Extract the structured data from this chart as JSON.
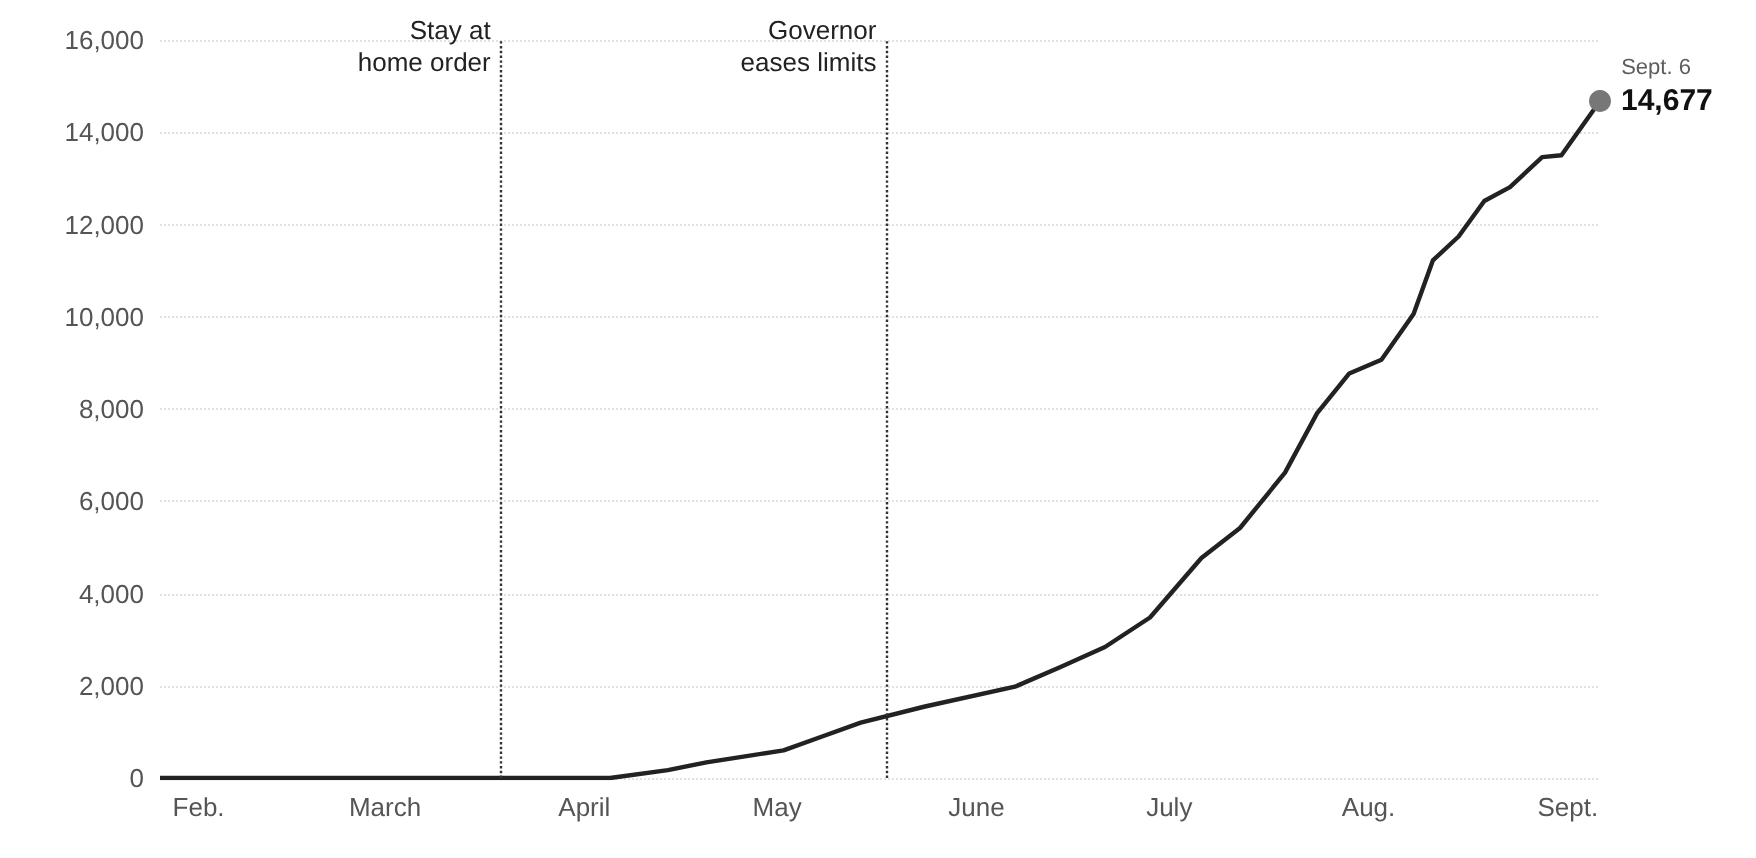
{
  "chart_data": {
    "type": "line",
    "x": [
      "--01-26",
      "--02-19",
      "--03-05",
      "--03-21",
      "--03-30",
      "--04-05",
      "--04-14",
      "--04-20",
      "--04-26",
      "--05-02",
      "--05-08",
      "--05-14",
      "--05-24",
      "--06-07",
      "--06-14",
      "--06-21",
      "--06-28",
      "--07-06",
      "--07-12",
      "--07-19",
      "--07-24",
      "--07-29",
      "--08-03",
      "--08-08",
      "--08-11",
      "--08-15",
      "--08-19",
      "--08-23",
      "--08-28",
      "--08-31",
      "--09-06"
    ],
    "series": [
      {
        "color": "#222222",
        "values": [
          0,
          0,
          0,
          0,
          0,
          0,
          170,
          340,
          470,
          600,
          900,
          1200,
          1550,
          1980,
          2400,
          2840,
          3480,
          4770,
          5420,
          6620,
          7910,
          8770,
          9070,
          10060,
          11220,
          11740,
          12510,
          12810,
          13460,
          13500,
          14677
        ],
        "value_labels": [
          null,
          null,
          null,
          null,
          null,
          null,
          null,
          null,
          null,
          null,
          null,
          null,
          null,
          null,
          null,
          null,
          null,
          null,
          null,
          null,
          null,
          null,
          null,
          null,
          null,
          null,
          null,
          null,
          null,
          null,
          "14,677"
        ]
      }
    ],
    "xlim": [
      "--01-26",
      "--09-06"
    ],
    "xticks": [
      {
        "value": "--02-01",
        "label": "Feb."
      },
      {
        "value": "--03-01",
        "label": "March"
      },
      {
        "value": "--04-01",
        "label": "April"
      },
      {
        "value": "--05-01",
        "label": "May"
      },
      {
        "value": "--06-01",
        "label": "June"
      },
      {
        "value": "--07-01",
        "label": "July"
      },
      {
        "value": "--08-01",
        "label": "Aug."
      },
      {
        "value": "--09-01",
        "label": "Sept."
      }
    ],
    "ylim": [
      0,
      16000
    ],
    "yticks": [
      {
        "value": 0,
        "label": "0"
      },
      {
        "value": 2000,
        "label": "2,000"
      },
      {
        "value": 4000,
        "label": "4,000"
      },
      {
        "value": 6000,
        "label": "6,000"
      },
      {
        "value": 8000,
        "label": "8,000"
      },
      {
        "value": 10000,
        "label": "10,000"
      },
      {
        "value": 12000,
        "label": "12,000"
      },
      {
        "value": 14000,
        "label": "14,000"
      },
      {
        "value": 16000,
        "label": "16,000"
      }
    ],
    "grid": "y",
    "marker": "none",
    "line_style": "solid",
    "ref_lines": [
      {
        "axis": "x",
        "value": "--03-19",
        "label": "Stay at\nhome order",
        "line_style": "dotted",
        "color": "#333333"
      },
      {
        "axis": "x",
        "value": "--05-18",
        "label": "Governor\neases limits",
        "line_style": "dotted",
        "color": "#333333"
      }
    ],
    "annotations": [
      {
        "text": "Sept. 6",
        "x": "--09-06",
        "y": 14677
      }
    ]
  }
}
